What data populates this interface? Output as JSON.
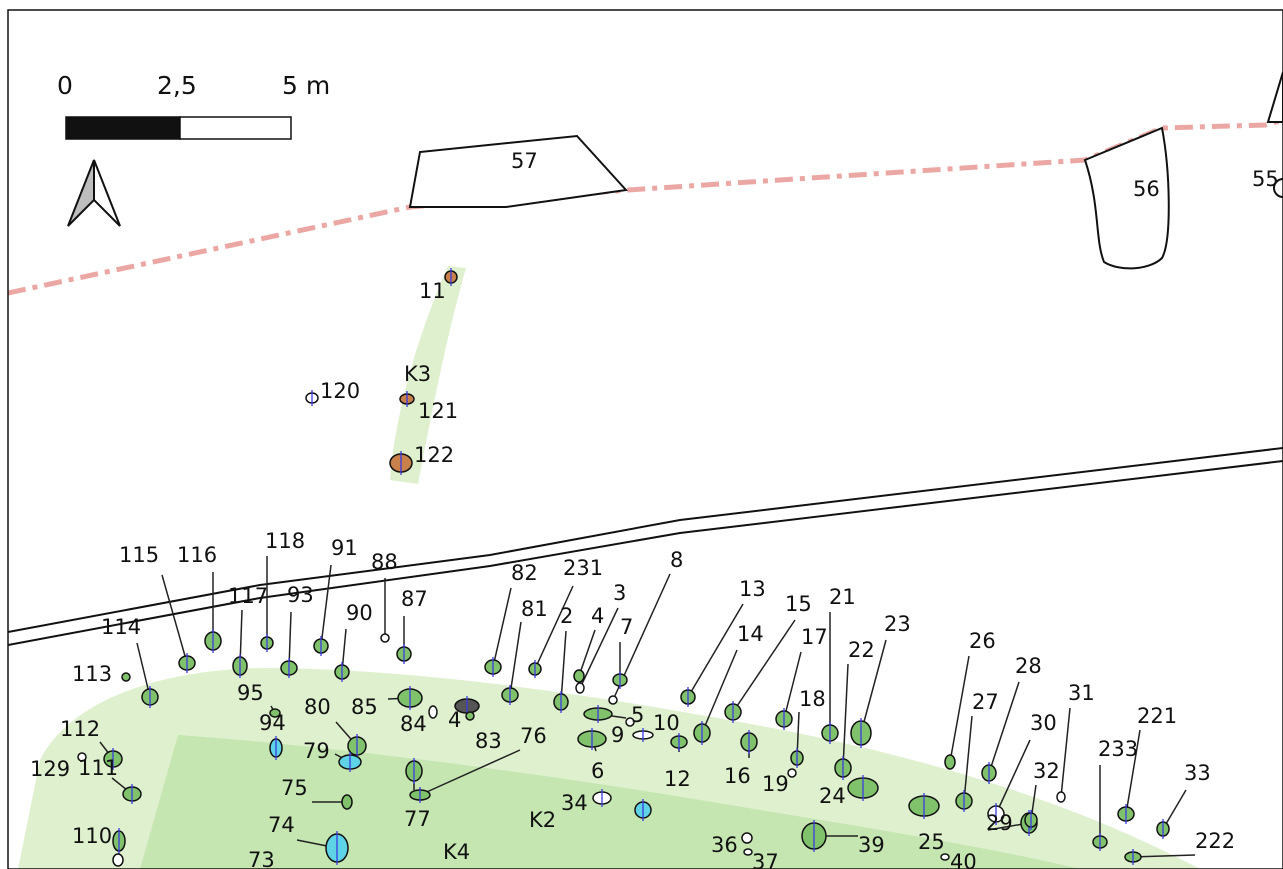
{
  "scale_bar": {
    "labels": [
      "0",
      "2,5",
      "5 m"
    ]
  },
  "zones": {
    "k2": "K2",
    "k3": "K3",
    "k4": "K4"
  },
  "structures": [
    {
      "id": "s57",
      "label": "57"
    },
    {
      "id": "s56",
      "label": "56"
    },
    {
      "id": "s55",
      "label": "55"
    }
  ],
  "features": [
    {
      "id": "f11",
      "label": "11",
      "fill": "#c8814a"
    },
    {
      "id": "f120",
      "label": "120",
      "fill": "#ffffff"
    },
    {
      "id": "f121",
      "label": "121",
      "fill": "#c8814a"
    },
    {
      "id": "f122",
      "label": "122",
      "fill": "#c8814a"
    },
    {
      "id": "f115",
      "label": "115",
      "fill": "#7fc26b"
    },
    {
      "id": "f116",
      "label": "116",
      "fill": "#7fc26b"
    },
    {
      "id": "f118",
      "label": "118",
      "fill": "#7fc26b"
    },
    {
      "id": "f91",
      "label": "91",
      "fill": "#7fc26b"
    },
    {
      "id": "f88",
      "label": "88",
      "fill": "#ffffff"
    },
    {
      "id": "f117",
      "label": "117",
      "fill": "#7fc26b"
    },
    {
      "id": "f93",
      "label": "93",
      "fill": "#7fc26b"
    },
    {
      "id": "f87",
      "label": "87",
      "fill": "#7fc26b"
    },
    {
      "id": "f90",
      "label": "90",
      "fill": "#7fc26b"
    },
    {
      "id": "f114",
      "label": "114",
      "fill": "#7fc26b"
    },
    {
      "id": "f113",
      "label": "113",
      "fill": "#7fc26b"
    },
    {
      "id": "f95",
      "label": "95",
      "fill": "#7fc26b"
    },
    {
      "id": "f112",
      "label": "112",
      "fill": "#7fc26b"
    },
    {
      "id": "f94",
      "label": "94",
      "fill": "#5fd3e6"
    },
    {
      "id": "f80",
      "label": "80",
      "fill": "#7fc26b"
    },
    {
      "id": "f85",
      "label": "85",
      "fill": "#7fc26b"
    },
    {
      "id": "f84",
      "label": "84",
      "fill": "#ffffff"
    },
    {
      "id": "f4b",
      "label": "4",
      "fill": "#555555"
    },
    {
      "id": "f83",
      "label": "83",
      "fill": "#7fc26b"
    },
    {
      "id": "f129",
      "label": "129",
      "fill": "#ffffff"
    },
    {
      "id": "f111",
      "label": "111",
      "fill": "#7fc26b"
    },
    {
      "id": "f79",
      "label": "79",
      "fill": "#5fd3e6"
    },
    {
      "id": "f75",
      "label": "75",
      "fill": "#7fc26b"
    },
    {
      "id": "f77",
      "label": "77",
      "fill": "#7fc26b"
    },
    {
      "id": "f76",
      "label": "76",
      "fill": "#7fc26b"
    },
    {
      "id": "f110",
      "label": "110",
      "fill": "#7fc26b"
    },
    {
      "id": "f74",
      "label": "74",
      "fill": "#5fd3e6"
    },
    {
      "id": "f73",
      "label": "73",
      "fill": "#ffffff"
    },
    {
      "id": "f82",
      "label": "82",
      "fill": "#7fc26b"
    },
    {
      "id": "f231",
      "label": "231",
      "fill": "#7fc26b"
    },
    {
      "id": "f81",
      "label": "81",
      "fill": "#7fc26b"
    },
    {
      "id": "f2",
      "label": "2",
      "fill": "#7fc26b"
    },
    {
      "id": "f4",
      "label": "4",
      "fill": "#7fc26b"
    },
    {
      "id": "f3",
      "label": "3",
      "fill": "#ffffff"
    },
    {
      "id": "f8",
      "label": "8",
      "fill": "#ffffff"
    },
    {
      "id": "f7",
      "label": "7",
      "fill": "#7fc26b"
    },
    {
      "id": "f5",
      "label": "5",
      "fill": "#7fc26b"
    },
    {
      "id": "f9",
      "label": "9",
      "fill": "#ffffff"
    },
    {
      "id": "f10",
      "label": "10",
      "fill": "#ffffff"
    },
    {
      "id": "f6",
      "label": "6",
      "fill": "#7fc26b"
    },
    {
      "id": "f12",
      "label": "12",
      "fill": "#7fc26b"
    },
    {
      "id": "f34",
      "label": "34",
      "fill": "#ffffff"
    },
    {
      "id": "fK2",
      "label": "",
      "fill": "#5fd3e6"
    },
    {
      "id": "f36",
      "label": "36",
      "fill": "#ffffff"
    },
    {
      "id": "f37",
      "label": "37",
      "fill": "#ffffff"
    },
    {
      "id": "f39",
      "label": "39",
      "fill": "#7fc26b"
    },
    {
      "id": "f13",
      "label": "13",
      "fill": "#7fc26b"
    },
    {
      "id": "f15",
      "label": "15",
      "fill": "#7fc26b"
    },
    {
      "id": "f14",
      "label": "14",
      "fill": "#7fc26b"
    },
    {
      "id": "f21",
      "label": "21",
      "fill": "#7fc26b"
    },
    {
      "id": "f17",
      "label": "17",
      "fill": "#7fc26b"
    },
    {
      "id": "f18",
      "label": "18",
      "fill": "#7fc26b"
    },
    {
      "id": "f16",
      "label": "16",
      "fill": "#7fc26b"
    },
    {
      "id": "f19",
      "label": "19",
      "fill": "#ffffff"
    },
    {
      "id": "f22",
      "label": "22",
      "fill": "#7fc26b"
    },
    {
      "id": "f23",
      "label": "23",
      "fill": "#7fc26b"
    },
    {
      "id": "f24",
      "label": "24",
      "fill": "#7fc26b"
    },
    {
      "id": "f25",
      "label": "25",
      "fill": "#7fc26b"
    },
    {
      "id": "f40",
      "label": "40",
      "fill": "#ffffff"
    },
    {
      "id": "f26",
      "label": "26",
      "fill": "#7fc26b"
    },
    {
      "id": "f28",
      "label": "28",
      "fill": "#7fc26b"
    },
    {
      "id": "f27",
      "label": "27",
      "fill": "#7fc26b"
    },
    {
      "id": "f30",
      "label": "30",
      "fill": "#ffffff"
    },
    {
      "id": "f29",
      "label": "29",
      "fill": "#7fc26b"
    },
    {
      "id": "f31",
      "label": "31",
      "fill": "#ffffff"
    },
    {
      "id": "f32",
      "label": "32",
      "fill": "#7fc26b"
    },
    {
      "id": "f221",
      "label": "221",
      "fill": "#7fc26b"
    },
    {
      "id": "f233",
      "label": "233",
      "fill": "#7fc26b"
    },
    {
      "id": "f33",
      "label": "33",
      "fill": "#7fc26b"
    },
    {
      "id": "f222",
      "label": "222",
      "fill": "#7fc26b"
    }
  ],
  "colors": {
    "boundary_dashed": "#eba7a3",
    "zone_light": "#dff0cf",
    "zone_medium": "#c5e6b1",
    "feature_green": "#7fc26b",
    "feature_orange": "#c8814a",
    "feature_cyan": "#5fd3e6",
    "section_marker": "#3a3ae0"
  }
}
